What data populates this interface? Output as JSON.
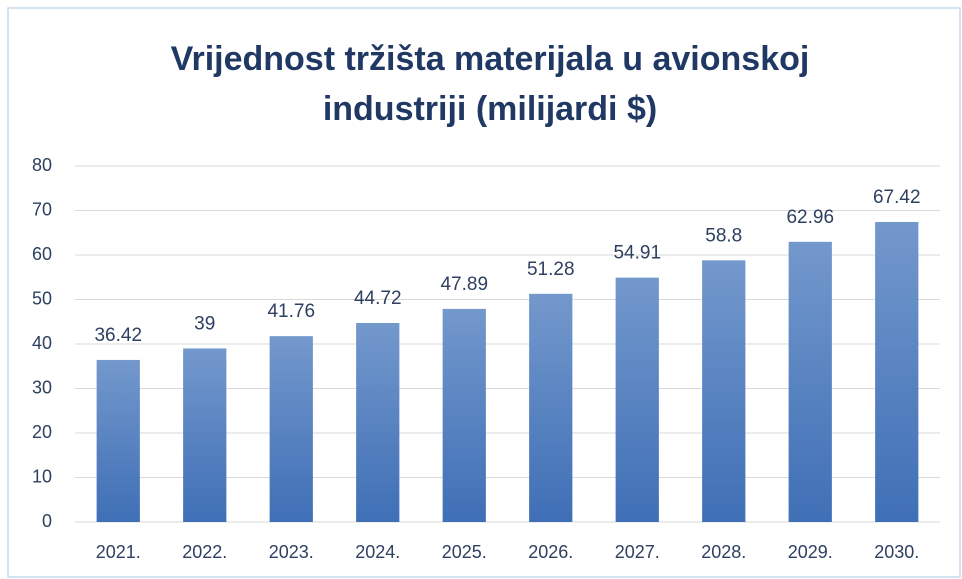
{
  "chart_data": {
    "type": "bar",
    "title": "Vrijednost tržišta materijala u avionskoj industriji (milijardi $)",
    "categories": [
      "2021.",
      "2022.",
      "2023.",
      "2024.",
      "2025.",
      "2026.",
      "2027.",
      "2028.",
      "2029.",
      "2030."
    ],
    "values": [
      36.42,
      39,
      41.76,
      44.72,
      47.89,
      51.28,
      54.91,
      58.8,
      62.96,
      67.42
    ],
    "color": "#3f6fb6",
    "ylim": [
      0,
      80
    ],
    "yticks": [
      0,
      10,
      20,
      30,
      40,
      50,
      60,
      70,
      80
    ],
    "grid": true
  }
}
